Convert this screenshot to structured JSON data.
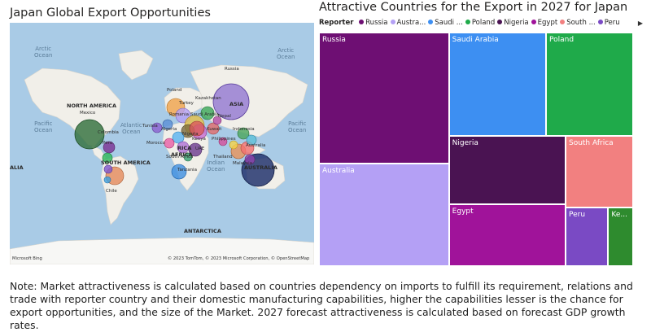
{
  "map_panel": {
    "title": "Japan Global Export Opportunities",
    "oceans": [
      {
        "id": "arctic-1",
        "text": "Arctic\nOcean"
      },
      {
        "id": "arctic-2",
        "text": "Arctic\nOcean"
      },
      {
        "id": "pacific-1",
        "text": "Pacific\nOcean"
      },
      {
        "id": "atlantic",
        "text": "Atlantic\nOcean"
      },
      {
        "id": "indian",
        "text": "Indian\nOcean"
      },
      {
        "id": "pacific-2",
        "text": "Pacific\nOcean"
      }
    ],
    "regions": [
      "NORTH AMERICA",
      "SOUTH AMERICA",
      "AFRICA",
      "ASIA",
      "AUSTRALIA",
      "ANTARCTICA",
      "ALIA",
      "RICA"
    ],
    "cities": [
      "Russia",
      "Poland",
      "Kazakhstan",
      "Turkey",
      "Romania",
      "Tunisia",
      "Algeria",
      "Saudi Arabia",
      "Kuwait",
      "Nepal",
      "Mexico",
      "Colombia",
      "Peru",
      "Chile",
      "Morocco",
      "Nigeria",
      "Kenya",
      "South Africa",
      "Tanzania",
      "UAE",
      "Philippines",
      "Indonesia",
      "Thailand",
      "Malaysia",
      "Australia"
    ],
    "attribution": "© 2023 TomTom, © 2023 Microsoft Corporation, © OpenStreetMap",
    "bing_logo": "Microsoft Bing",
    "bubble_colors": [
      "#6b4fa8",
      "#1f7a3a",
      "#b05fc0",
      "#3d8fd6",
      "#e46f6f",
      "#f3c242",
      "#a33a8f",
      "#e8925a",
      "#45b5c4",
      "#9bd16a",
      "#ef7fb5",
      "#3468b8",
      "#cf3c3c",
      "#5c3f9c",
      "#2c9e5c",
      "#f29a3b"
    ]
  },
  "treemap_panel": {
    "title": "Attractive Countries for the Export in 2027 for Japan",
    "legend": {
      "title": "Reporter",
      "items": [
        {
          "label": "Russia",
          "color": "#6e0f73"
        },
        {
          "label": "Austra...",
          "color": "#b4a0f5"
        },
        {
          "label": "Saudi ...",
          "color": "#3d8ff2"
        },
        {
          "label": "Poland",
          "color": "#1faa4a"
        },
        {
          "label": "Nigeria",
          "color": "#4a1352"
        },
        {
          "label": "Egypt",
          "color": "#a0139a"
        },
        {
          "label": "South ...",
          "color": "#f28080"
        },
        {
          "label": "Peru",
          "color": "#7a4ac4"
        }
      ],
      "more_arrow": "▶"
    }
  },
  "chart_data": {
    "type": "treemap",
    "title": "Attractive Countries for the Export in 2027 for Japan",
    "legend_title": "Reporter",
    "tiles": [
      {
        "label": "Russia",
        "color": "#6e0f73",
        "value": 16.3
      },
      {
        "label": "Australia",
        "color": "#b4a0f5",
        "value": 12.7
      },
      {
        "label": "Saudi Arabia",
        "color": "#3d8ff2",
        "value": 9.6
      },
      {
        "label": "Poland",
        "color": "#1faa4a",
        "value": 8.6
      },
      {
        "label": "Nigeria",
        "color": "#4a1352",
        "value": 7.6
      },
      {
        "label": "Egypt",
        "color": "#a0139a",
        "value": 6.9
      },
      {
        "label": "South Africa",
        "color": "#f28080",
        "value": 4.6
      },
      {
        "label": "Peru",
        "color": "#7a4ac4",
        "value": 2.4
      },
      {
        "label": "Ke...",
        "color": "#2e8b2e",
        "value": 1.4
      }
    ]
  },
  "note": "Note: Market attractiveness is calculated based on countries dependency on imports to fulfill its requirement, relations and trade with reporter country and their domestic manufacturing capabilities, higher the capabilities lesser is the chance for export opportunities, and the size of the Market. 2027 forecast attractiveness is calculated based on forecast GDP growth rates."
}
